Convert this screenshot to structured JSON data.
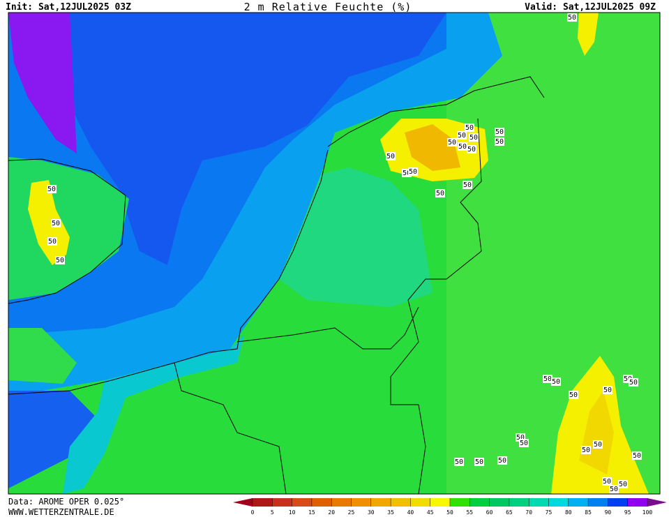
{
  "header": {
    "init": "Init: Sat,12JUL2025 03Z",
    "title": "2 m Relative Feuchte (%)",
    "valid": "Valid: Sat,12JUL2025 09Z"
  },
  "footer": {
    "data": "Data: AROME OPER 0.025°",
    "website": "WWW.WETTERZENTRALE.DE"
  },
  "contour_labels": [
    "50",
    "50",
    "50",
    "50",
    "50",
    "50",
    "50",
    "50",
    "50",
    "50",
    "50",
    "50",
    "50",
    "50",
    "50",
    "50",
    "50",
    "50",
    "50",
    "50",
    "50",
    "50",
    "50",
    "50",
    "50",
    "50",
    "50",
    "50",
    "50",
    "50",
    "50",
    "50",
    "50",
    "50",
    "50"
  ],
  "colorbar": {
    "ticks": [
      0,
      5,
      10,
      15,
      20,
      25,
      30,
      35,
      40,
      45,
      50,
      55,
      60,
      65,
      70,
      75,
      80,
      85,
      90,
      95,
      100
    ],
    "under_color": "#a0001e",
    "over_color": "#7a0a90",
    "colors": [
      "#b01818",
      "#c83020",
      "#d84a18",
      "#e06000",
      "#e87a00",
      "#f09000",
      "#f0a800",
      "#f0c000",
      "#f0dc00",
      "#f8f800",
      "#30e000",
      "#00d040",
      "#00c860",
      "#00d080",
      "#00d8b0",
      "#00d8e0",
      "#00b0f0",
      "#0080f0",
      "#0040f0",
      "#9000f0"
    ]
  }
}
